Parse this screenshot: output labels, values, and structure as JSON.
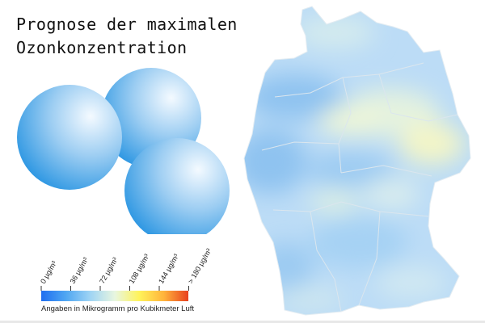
{
  "title": {
    "line1": "Prognose der maximalen",
    "line2": "Ozonkonzentration"
  },
  "illustration": {
    "icon": "ozone-molecule-icon",
    "colors": {
      "light": "#f4faff",
      "mid": "#9ccdf2",
      "dark": "#1d8fe0"
    }
  },
  "map": {
    "icon": "germany-map",
    "colors": {
      "base": "#bcdcf6",
      "blue": "#8fc3f0",
      "yellow": "#f3f5c7",
      "border": "#d9e4ec"
    }
  },
  "legend": {
    "ticks": [
      "0 µg/m³",
      "36 µg/m³",
      "72 µg/m³",
      "108 µg/m³",
      "144 µg/m³",
      "> 180 µg/m³"
    ],
    "gradient": [
      "#1f6ef0",
      "#4fa6f2",
      "#9fd4f4",
      "#e8f6e0",
      "#fff35a",
      "#ffb43c",
      "#e8401f"
    ],
    "caption": "Angaben in Mikrogramm pro Kubikmeter Luft"
  }
}
